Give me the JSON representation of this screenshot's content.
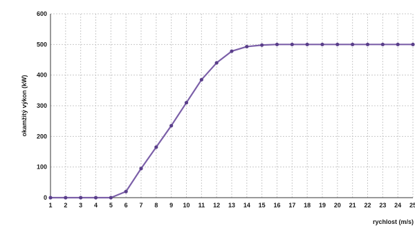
{
  "chart_data": {
    "type": "line",
    "title": "",
    "xlabel": "rychlost (m/s)",
    "ylabel": "okamžitý výkon (kW)",
    "x": [
      1,
      2,
      3,
      4,
      5,
      6,
      7,
      8,
      9,
      10,
      11,
      12,
      13,
      14,
      15,
      16,
      17,
      18,
      19,
      20,
      21,
      22,
      23,
      24,
      25
    ],
    "series": [
      {
        "values": [
          0,
          0,
          0,
          0,
          0,
          20,
          95,
          165,
          235,
          310,
          385,
          440,
          478,
          493,
          498,
          500,
          500,
          500,
          500,
          500,
          500,
          500,
          500,
          500,
          500
        ]
      }
    ],
    "xlim": [
      1,
      25
    ],
    "ylim": [
      0,
      600
    ],
    "yticks": [
      0,
      100,
      200,
      300,
      400,
      500,
      600
    ],
    "grid": true,
    "line_color": "#7b5fa8",
    "marker_color": "#5a3f8a"
  }
}
